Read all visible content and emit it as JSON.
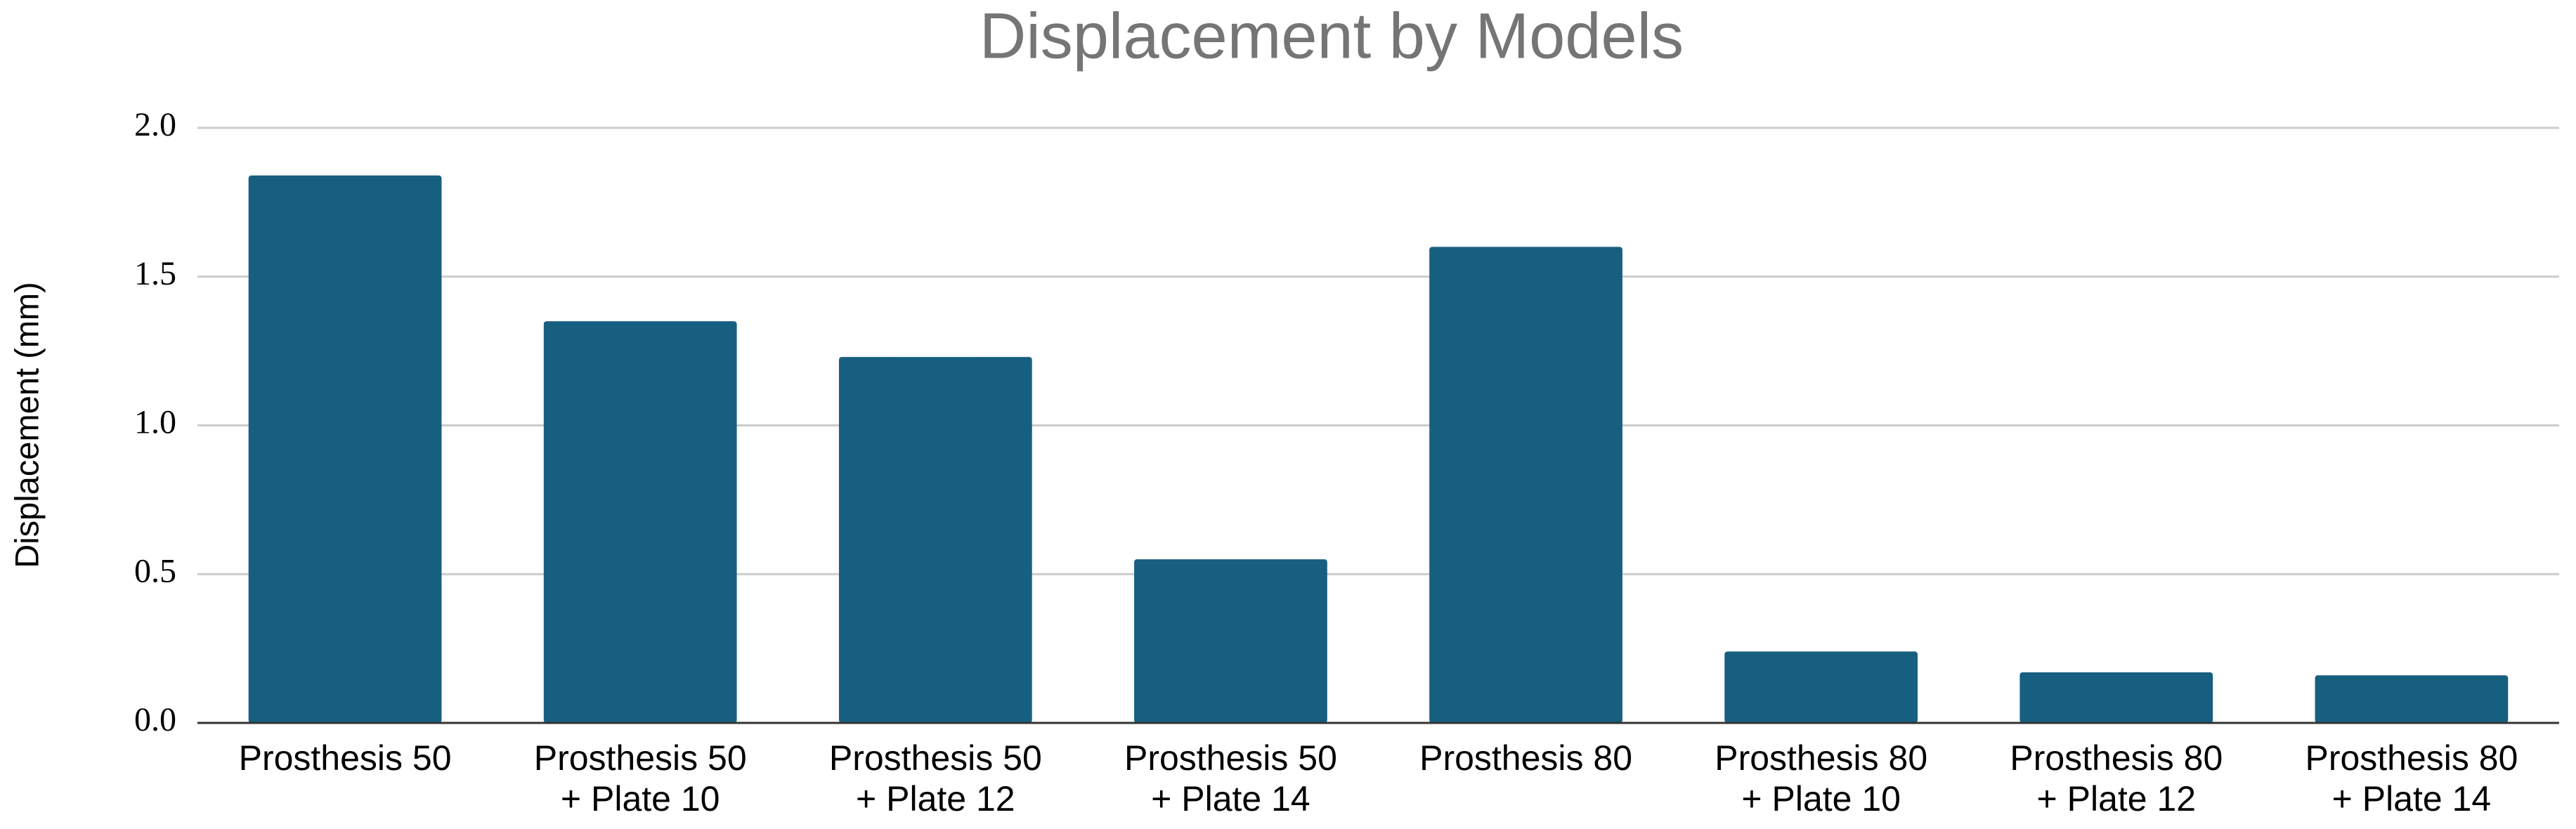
{
  "chart_data": {
    "type": "bar",
    "title": "Displacement by Models",
    "y_label": "Displacement (mm)",
    "categories": [
      "Prosthesis 50",
      "Prosthesis 50\n+ Plate 10",
      "Prosthesis 50\n+ Plate 12",
      "Prosthesis 50\n+ Plate 14",
      "Prosthesis 80",
      "Prosthesis 80\n+ Plate 10",
      "Prosthesis 80\n+ Plate 12",
      "Prosthesis 80\n+ Plate 14"
    ],
    "values": [
      1.84,
      1.35,
      1.23,
      0.55,
      1.6,
      0.24,
      0.17,
      0.16
    ],
    "color": "#175f80",
    "ylim": [
      0,
      2.0
    ],
    "yticks": [
      {
        "value": 0,
        "label": "0.0"
      },
      0.5,
      {
        "value": 1,
        "label": "1.0"
      },
      1.5,
      {
        "value": 2,
        "label": "2.0"
      }
    ],
    "grid": true
  }
}
